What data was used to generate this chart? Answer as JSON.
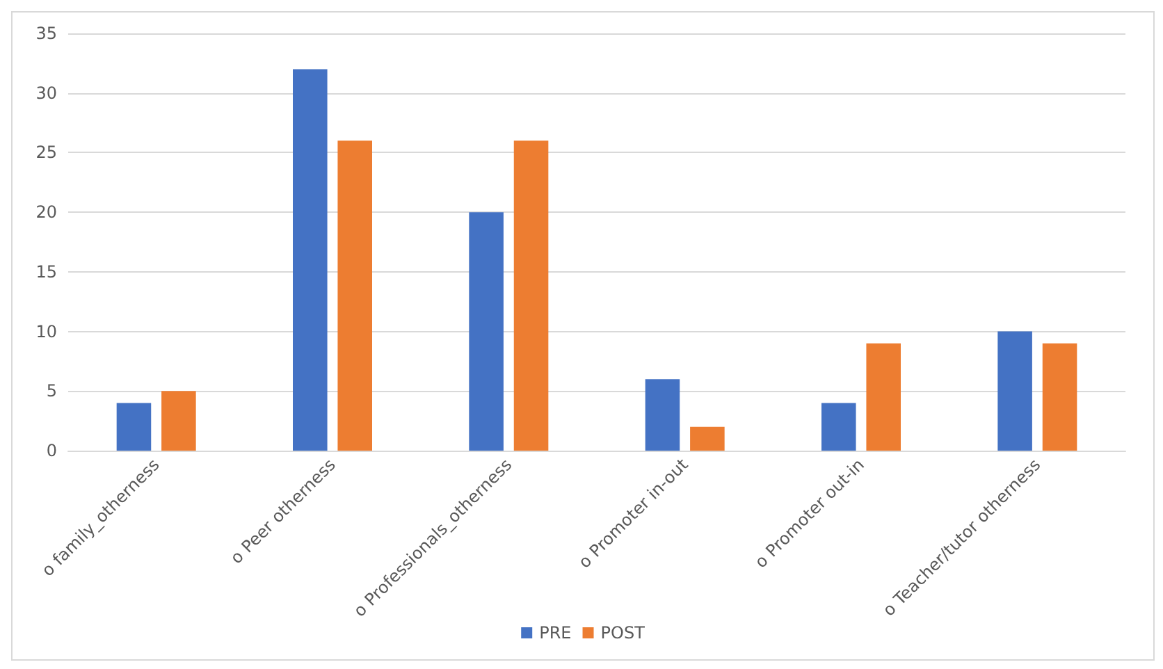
{
  "chart_data": {
    "type": "bar",
    "categories": [
      "o family_otherness",
      "o Peer otherness",
      "o Professionals_otherness",
      "o Promoter in-out",
      "o Promoter out-in",
      "o Teacher/tutor otherness"
    ],
    "series": [
      {
        "name": "PRE",
        "color": "#4472c4",
        "values": [
          4,
          32,
          20,
          6,
          4,
          10
        ]
      },
      {
        "name": "POST",
        "color": "#ed7d31",
        "values": [
          5,
          26,
          26,
          2,
          9,
          9
        ]
      }
    ],
    "ylim": [
      0,
      35
    ],
    "yticks": [
      0,
      5,
      10,
      15,
      20,
      25,
      30,
      35
    ],
    "grid": "y",
    "legend": "bottom"
  }
}
